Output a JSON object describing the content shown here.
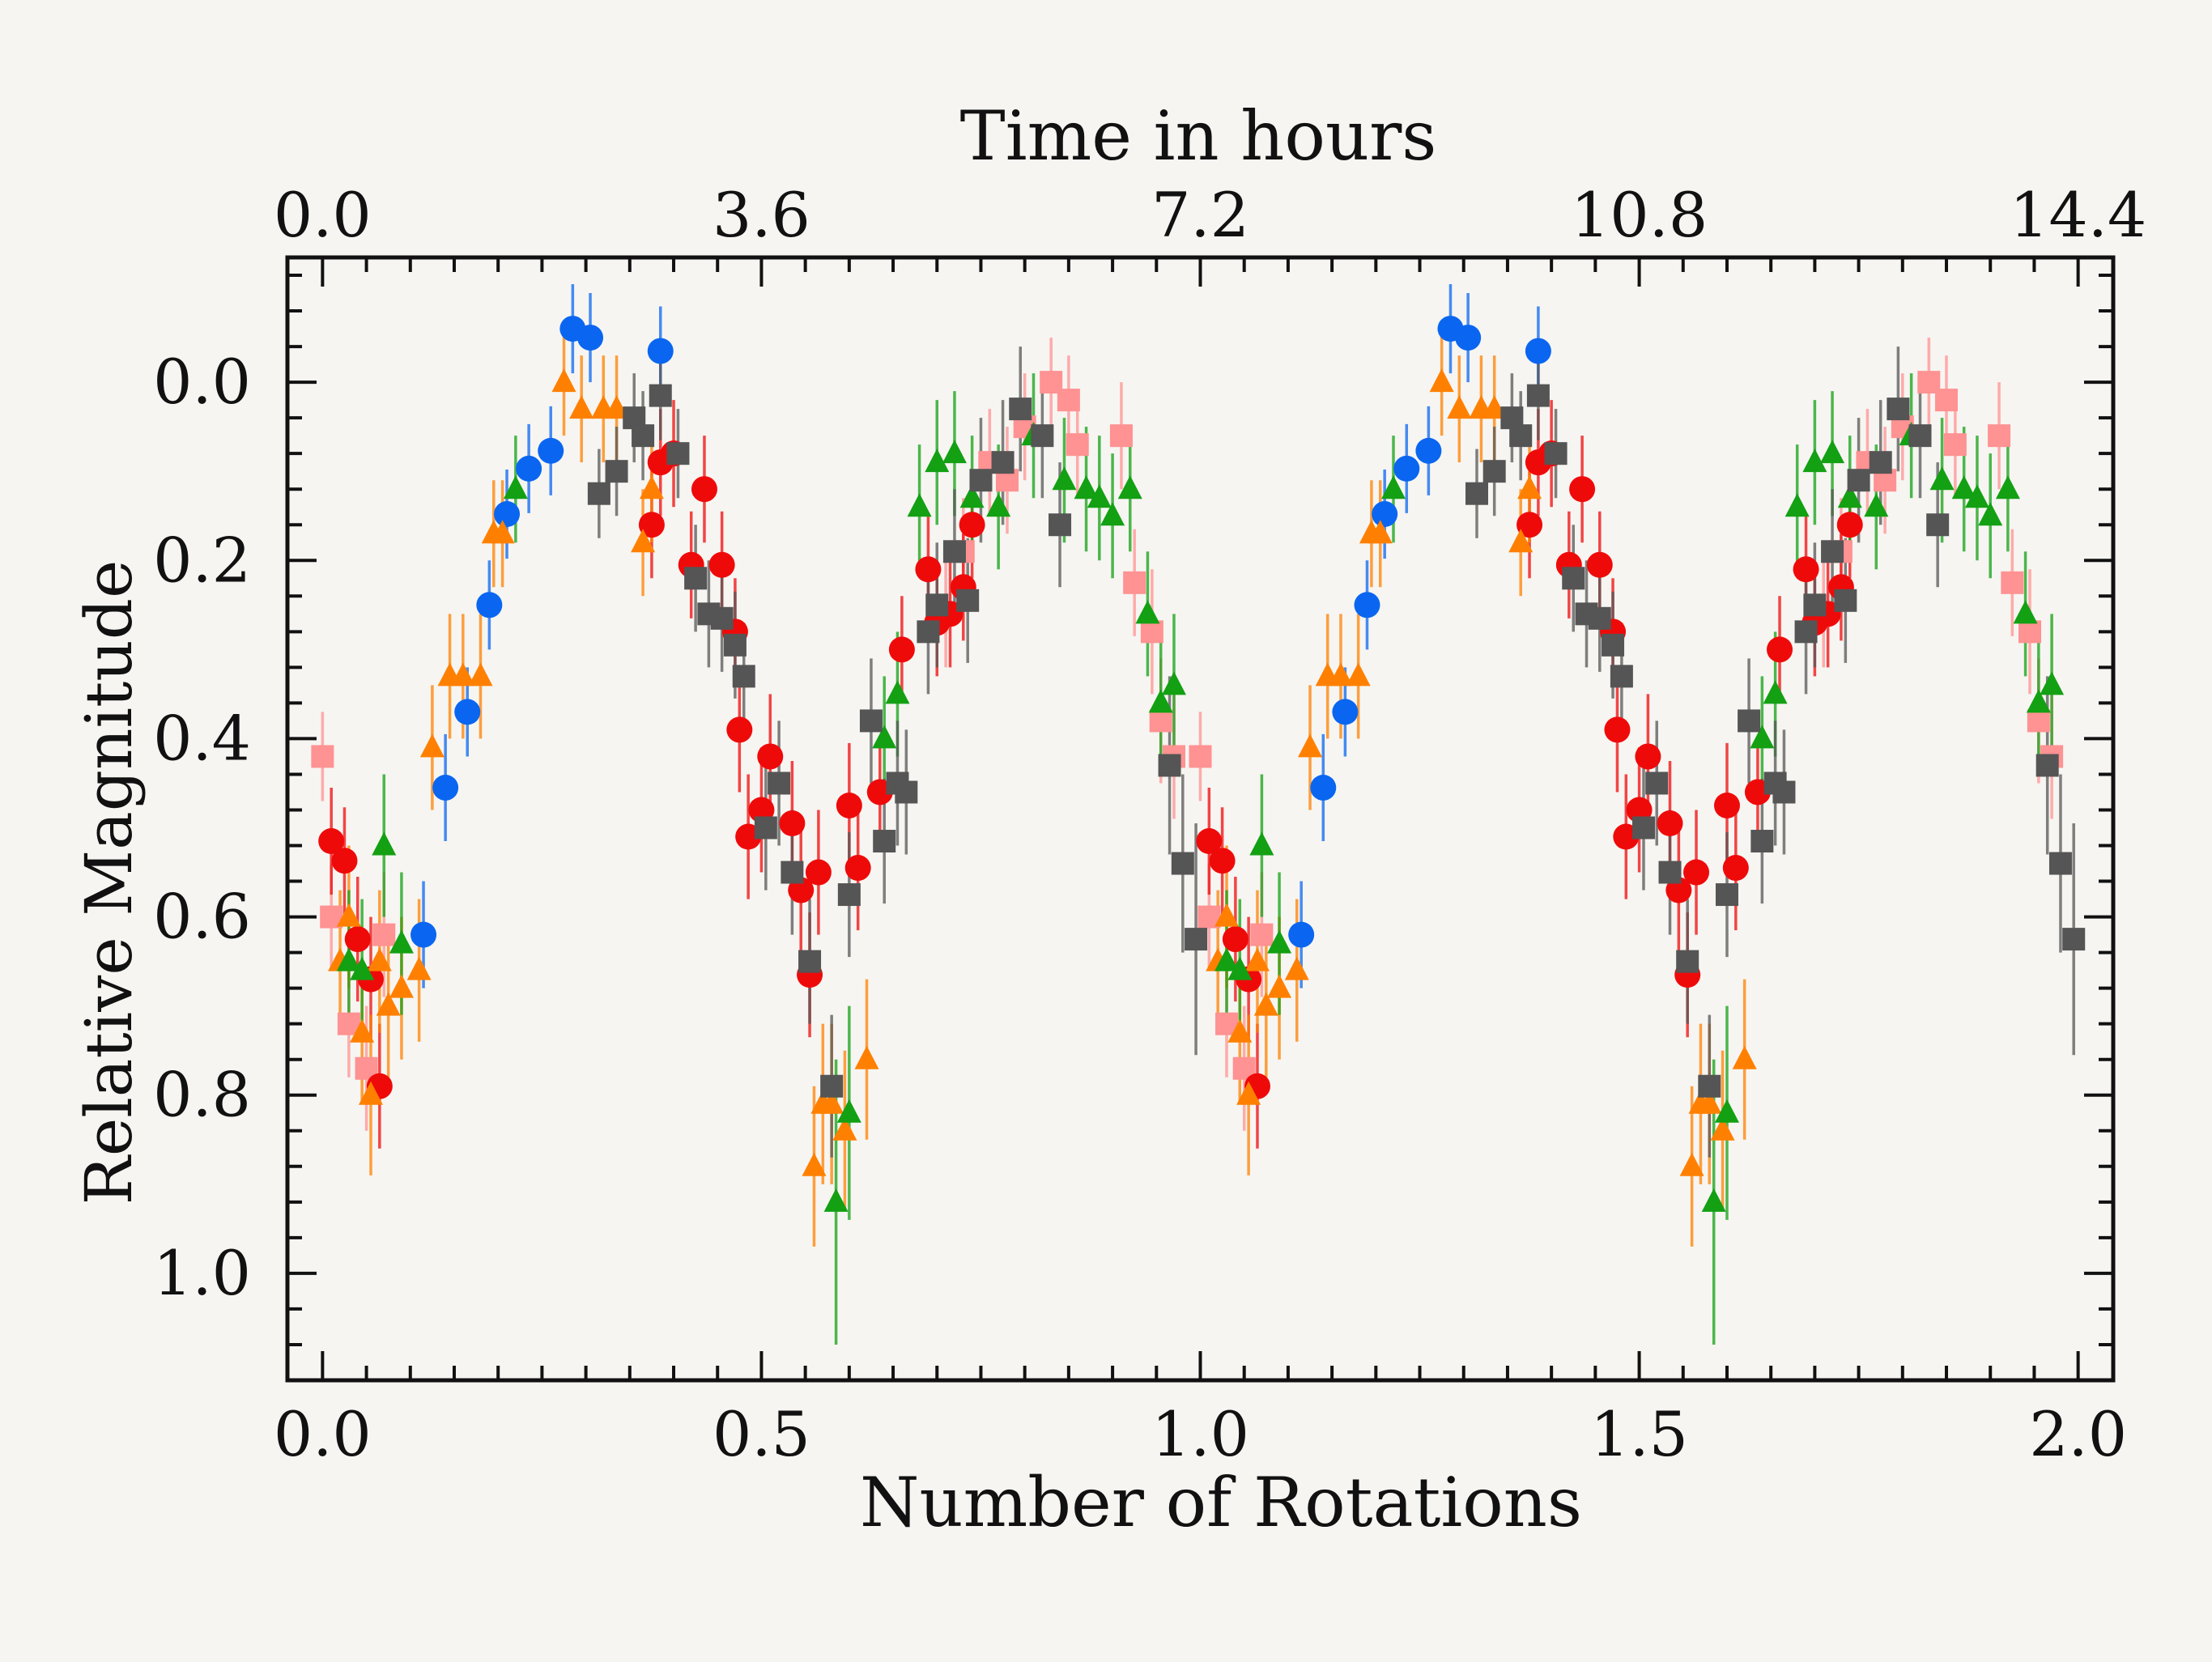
{
  "chart_data": {
    "type": "scatter",
    "xlabel": "Number of Rotations",
    "x2label": "Time in hours",
    "ylabel": "Relative Magnitude",
    "xlim": [
      -0.04,
      2.04
    ],
    "ylim": [
      1.12,
      -0.14
    ],
    "y_inverted": true,
    "xticks": [
      0.0,
      0.5,
      1.0,
      1.5,
      2.0
    ],
    "xtick_labels": [
      "0.0",
      "0.5",
      "1.0",
      "1.5",
      "2.0"
    ],
    "x2ticks": [
      0.0,
      0.5,
      1.0,
      1.5,
      2.0
    ],
    "x2tick_labels": [
      "0.0",
      "3.6",
      "7.2",
      "10.8",
      "14.4"
    ],
    "yticks": [
      0.0,
      0.2,
      0.4,
      0.6,
      0.8,
      1.0
    ],
    "ytick_labels": [
      "0.0",
      "0.2",
      "0.4",
      "0.6",
      "0.8",
      "1.0"
    ],
    "grid": false,
    "legend": "none",
    "period_repeat": 1.0,
    "series": [
      {
        "color": "#0a66f0",
        "marker": "circle",
        "points": [
          [
            0.115,
            0.62,
            0.06
          ],
          [
            0.14,
            0.455,
            0.06
          ],
          [
            0.165,
            0.37,
            0.05
          ],
          [
            0.19,
            0.25,
            0.05
          ],
          [
            0.21,
            0.148,
            0.05
          ],
          [
            0.235,
            0.097,
            0.05
          ],
          [
            0.26,
            0.077,
            0.05
          ],
          [
            0.285,
            -0.06,
            0.05
          ],
          [
            0.305,
            -0.05,
            0.05
          ],
          [
            0.385,
            -0.035,
            0.05
          ]
        ]
      },
      {
        "color": "#ff9292",
        "marker": "square",
        "points": [
          [
            0.0,
            0.42,
            0.05
          ],
          [
            0.01,
            0.6,
            0.06
          ],
          [
            0.03,
            0.72,
            0.06
          ],
          [
            0.05,
            0.77,
            0.07
          ],
          [
            0.07,
            0.62,
            0.07
          ],
          [
            0.71,
            0.26,
            0.06
          ],
          [
            0.73,
            0.19,
            0.06
          ],
          [
            0.76,
            0.09,
            0.06
          ],
          [
            0.78,
            0.11,
            0.06
          ],
          [
            0.8,
            0.05,
            0.06
          ],
          [
            0.83,
            0.0,
            0.05
          ],
          [
            0.85,
            0.02,
            0.05
          ],
          [
            0.86,
            0.07,
            0.06
          ],
          [
            0.91,
            0.06,
            0.06
          ],
          [
            0.925,
            0.225,
            0.06
          ],
          [
            0.945,
            0.28,
            0.07
          ],
          [
            0.955,
            0.38,
            0.07
          ],
          [
            0.97,
            0.42,
            0.07
          ]
        ]
      },
      {
        "color": "#ef0a0a",
        "marker": "circle",
        "points": [
          [
            0.01,
            0.515,
            0.06
          ],
          [
            0.025,
            0.537,
            0.06
          ],
          [
            0.04,
            0.625,
            0.07
          ],
          [
            0.055,
            0.67,
            0.07
          ],
          [
            0.065,
            0.79,
            0.07
          ],
          [
            0.375,
            0.16,
            0.06
          ],
          [
            0.385,
            0.09,
            0.06
          ],
          [
            0.4,
            0.08,
            0.06
          ],
          [
            0.42,
            0.205,
            0.06
          ],
          [
            0.435,
            0.12,
            0.06
          ],
          [
            0.455,
            0.205,
            0.06
          ],
          [
            0.47,
            0.28,
            0.06
          ],
          [
            0.475,
            0.39,
            0.07
          ],
          [
            0.485,
            0.51,
            0.07
          ],
          [
            0.5,
            0.48,
            0.07
          ],
          [
            0.51,
            0.42,
            0.07
          ],
          [
            0.535,
            0.495,
            0.07
          ],
          [
            0.545,
            0.57,
            0.07
          ],
          [
            0.555,
            0.665,
            0.07
          ],
          [
            0.565,
            0.55,
            0.07
          ],
          [
            0.6,
            0.475,
            0.07
          ],
          [
            0.61,
            0.545,
            0.07
          ],
          [
            0.635,
            0.46,
            0.06
          ],
          [
            0.66,
            0.3,
            0.06
          ],
          [
            0.69,
            0.21,
            0.06
          ],
          [
            0.7,
            0.27,
            0.06
          ],
          [
            0.715,
            0.26,
            0.06
          ],
          [
            0.73,
            0.23,
            0.06
          ],
          [
            0.74,
            0.16,
            0.06
          ]
        ]
      },
      {
        "color": "#ff8000",
        "marker": "triangle",
        "points": [
          [
            0.02,
            0.65,
            0.08
          ],
          [
            0.03,
            0.6,
            0.08
          ],
          [
            0.045,
            0.73,
            0.08
          ],
          [
            0.055,
            0.8,
            0.09
          ],
          [
            0.065,
            0.65,
            0.08
          ],
          [
            0.075,
            0.7,
            0.08
          ],
          [
            0.09,
            0.68,
            0.08
          ],
          [
            0.11,
            0.66,
            0.08
          ],
          [
            0.125,
            0.41,
            0.07
          ],
          [
            0.145,
            0.33,
            0.07
          ],
          [
            0.16,
            0.33,
            0.07
          ],
          [
            0.18,
            0.33,
            0.07
          ],
          [
            0.195,
            0.17,
            0.06
          ],
          [
            0.205,
            0.17,
            0.06
          ],
          [
            0.275,
            0.0,
            0.06
          ],
          [
            0.295,
            0.03,
            0.06
          ],
          [
            0.32,
            0.03,
            0.06
          ],
          [
            0.335,
            0.03,
            0.06
          ],
          [
            0.365,
            0.18,
            0.06
          ],
          [
            0.375,
            0.12,
            0.06
          ],
          [
            0.56,
            0.88,
            0.09
          ],
          [
            0.57,
            0.81,
            0.09
          ],
          [
            0.58,
            0.81,
            0.09
          ],
          [
            0.595,
            0.84,
            0.09
          ],
          [
            0.62,
            0.76,
            0.09
          ]
        ]
      },
      {
        "color": "#13a013",
        "marker": "triangle",
        "points": [
          [
            0.03,
            0.65,
            0.08
          ],
          [
            0.045,
            0.66,
            0.08
          ],
          [
            0.07,
            0.52,
            0.08
          ],
          [
            0.09,
            0.63,
            0.08
          ],
          [
            0.22,
            0.12,
            0.06
          ],
          [
            0.585,
            0.92,
            0.16
          ],
          [
            0.6,
            0.82,
            0.12
          ],
          [
            0.64,
            0.4,
            0.07
          ],
          [
            0.655,
            0.35,
            0.07
          ],
          [
            0.68,
            0.14,
            0.07
          ],
          [
            0.7,
            0.09,
            0.07
          ],
          [
            0.72,
            0.08,
            0.07
          ],
          [
            0.74,
            0.13,
            0.07
          ],
          [
            0.77,
            0.14,
            0.07
          ],
          [
            0.81,
            0.06,
            0.07
          ],
          [
            0.845,
            0.11,
            0.07
          ],
          [
            0.87,
            0.12,
            0.07
          ],
          [
            0.885,
            0.13,
            0.07
          ],
          [
            0.9,
            0.15,
            0.07
          ],
          [
            0.92,
            0.12,
            0.07
          ],
          [
            0.94,
            0.26,
            0.07
          ],
          [
            0.955,
            0.36,
            0.08
          ],
          [
            0.97,
            0.34,
            0.08
          ]
        ]
      },
      {
        "color": "#555555",
        "marker": "square",
        "points": [
          [
            0.315,
            0.125,
            0.05
          ],
          [
            0.335,
            0.1,
            0.05
          ],
          [
            0.355,
            0.04,
            0.05
          ],
          [
            0.365,
            0.06,
            0.05
          ],
          [
            0.385,
            0.015,
            0.05
          ],
          [
            0.405,
            0.08,
            0.05
          ],
          [
            0.425,
            0.22,
            0.06
          ],
          [
            0.44,
            0.26,
            0.06
          ],
          [
            0.455,
            0.265,
            0.06
          ],
          [
            0.47,
            0.295,
            0.06
          ],
          [
            0.48,
            0.33,
            0.06
          ],
          [
            0.505,
            0.5,
            0.07
          ],
          [
            0.52,
            0.45,
            0.07
          ],
          [
            0.535,
            0.55,
            0.07
          ],
          [
            0.555,
            0.65,
            0.07
          ],
          [
            0.58,
            0.79,
            0.08
          ],
          [
            0.6,
            0.575,
            0.07
          ],
          [
            0.625,
            0.38,
            0.07
          ],
          [
            0.64,
            0.515,
            0.07
          ],
          [
            0.655,
            0.45,
            0.07
          ],
          [
            0.665,
            0.46,
            0.07
          ],
          [
            0.69,
            0.28,
            0.07
          ],
          [
            0.7,
            0.25,
            0.07
          ],
          [
            0.72,
            0.19,
            0.07
          ],
          [
            0.735,
            0.245,
            0.07
          ],
          [
            0.75,
            0.11,
            0.07
          ],
          [
            0.775,
            0.09,
            0.07
          ],
          [
            0.795,
            0.03,
            0.07
          ],
          [
            0.82,
            0.06,
            0.07
          ],
          [
            0.84,
            0.16,
            0.07
          ],
          [
            0.965,
            0.43,
            0.1
          ],
          [
            0.98,
            0.54,
            0.1
          ],
          [
            0.995,
            0.625,
            0.13
          ]
        ]
      }
    ]
  }
}
